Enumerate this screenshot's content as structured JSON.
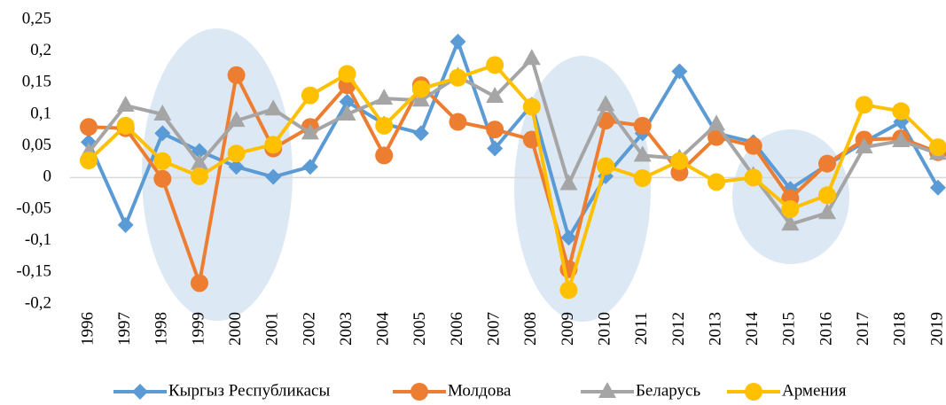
{
  "chart_data": {
    "type": "line",
    "categories": [
      "1996",
      "1997",
      "1998",
      "1999",
      "2000",
      "2001",
      "2002",
      "2003",
      "2004",
      "2005",
      "2006",
      "2007",
      "2008",
      "2009",
      "2010",
      "2011",
      "2012",
      "2013",
      "2014",
      "2015",
      "2016",
      "2017",
      "2018",
      "2019"
    ],
    "series": [
      {
        "name": "Кыргыз Республикасы",
        "color": "#5b9bd5",
        "marker": "diamond",
        "values": [
          0.056,
          -0.075,
          0.07,
          0.042,
          0.017,
          0.001,
          0.017,
          0.12,
          0.085,
          0.07,
          0.215,
          0.046,
          0.115,
          -0.095,
          0.002,
          0.07,
          0.168,
          0.07,
          0.056,
          -0.018,
          0.02,
          0.056,
          0.088,
          -0.016
        ]
      },
      {
        "name": "Молдова",
        "color": "#ed7d31",
        "marker": "circle",
        "values": [
          0.08,
          0.078,
          -0.002,
          -0.167,
          0.162,
          0.046,
          0.08,
          0.146,
          0.035,
          0.146,
          0.088,
          0.076,
          0.06,
          -0.145,
          0.09,
          0.082,
          0.008,
          0.064,
          0.05,
          -0.033,
          0.022,
          0.06,
          0.062,
          0.04
        ]
      },
      {
        "name": "Беларусь",
        "color": "#a5a5a5",
        "marker": "triangle",
        "values": [
          0.04,
          0.114,
          0.1,
          0.022,
          0.09,
          0.108,
          0.07,
          0.1,
          0.125,
          0.122,
          0.16,
          0.128,
          0.188,
          -0.01,
          0.115,
          0.035,
          0.03,
          0.084,
          0.003,
          -0.074,
          -0.056,
          0.048,
          0.058,
          0.038
        ]
      },
      {
        "name": "Армения",
        "color": "#ffc000",
        "marker": "circle",
        "values": [
          0.027,
          0.082,
          0.026,
          0.002,
          0.038,
          0.052,
          0.13,
          0.164,
          0.082,
          0.14,
          0.158,
          0.178,
          0.112,
          -0.178,
          0.018,
          -0.001,
          0.026,
          -0.007,
          0.0,
          -0.05,
          -0.028,
          0.115,
          0.105,
          0.048
        ]
      }
    ],
    "ylim": [
      -0.2,
      0.25
    ],
    "yticks": [
      {
        "value": -0.2,
        "label": "-0,2"
      },
      {
        "value": -0.15,
        "label": "-0,15"
      },
      {
        "value": -0.1,
        "label": "-0,1"
      },
      {
        "value": -0.05,
        "label": "-0,05"
      },
      0,
      {
        "value": 0.05,
        "label": "0,05"
      },
      {
        "value": 0.1,
        "label": "0,1"
      },
      {
        "value": 0.15,
        "label": "0,15"
      },
      {
        "value": 0.2,
        "label": "0,2"
      },
      {
        "value": 0.25,
        "label": "0,25"
      }
    ],
    "grid": false,
    "legend": "bottom"
  }
}
